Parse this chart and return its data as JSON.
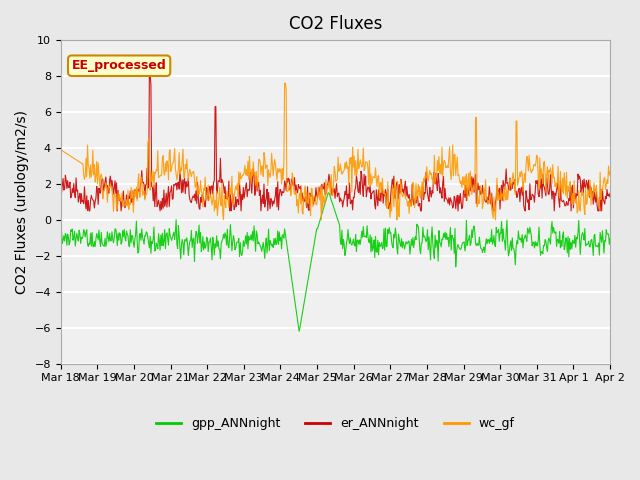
{
  "title": "CO2 Fluxes",
  "ylabel": "CO2 Fluxes (urology/m2/s)",
  "ylim": [
    -8,
    10
  ],
  "yticks": [
    -8,
    -6,
    -4,
    -2,
    0,
    2,
    4,
    6,
    8,
    10
  ],
  "xtick_labels": [
    "Mar 18",
    "Mar 19",
    "Mar 20",
    "Mar 21",
    "Mar 22",
    "Mar 23",
    "Mar 24",
    "Mar 25",
    "Mar 26",
    "Mar 27",
    "Mar 28",
    "Mar 29",
    "Mar 30",
    "Mar 31",
    "Apr 1",
    "Apr 2"
  ],
  "n_days": 15,
  "pts_per_day": 48,
  "gpp_color": "#00cc00",
  "er_color": "#cc0000",
  "wc_color": "#ff9900",
  "legend_labels": [
    "gpp_ANNnight",
    "er_ANNnight",
    "wc_gf"
  ],
  "annotation_text": "EE_processed",
  "annotation_bg": "#ffffcc",
  "annotation_border": "#cc8800",
  "background_color": "#e8e8e8",
  "plot_bg_color": "#f0f0f0",
  "grid_color": "#ffffff",
  "title_fontsize": 12,
  "label_fontsize": 10,
  "tick_fontsize": 8
}
